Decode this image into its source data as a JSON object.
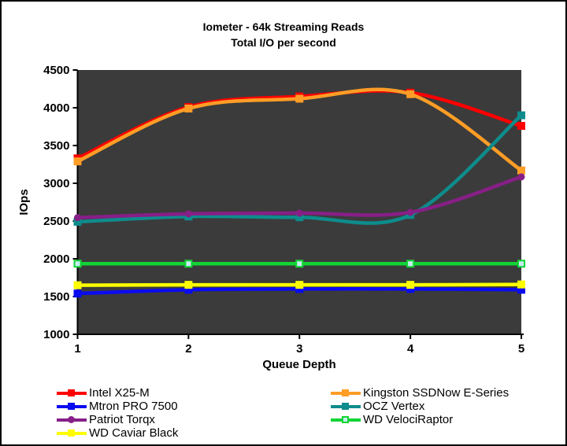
{
  "frame": {
    "background": "#FFFFFF",
    "border_color": "#000000"
  },
  "chart_data": {
    "type": "line",
    "title": "Iometer - 64k Streaming Reads",
    "subtitle": "Total I/O per second",
    "xlabel": "Queue Depth",
    "ylabel": "IOps",
    "x": [
      1,
      2,
      3,
      4,
      5
    ],
    "xticks": [
      "1",
      "2",
      "3",
      "4",
      "5"
    ],
    "yticks": [
      "4500",
      "4000",
      "3500",
      "3000",
      "2500",
      "2000",
      "1500",
      "1000"
    ],
    "ylim": [
      1000,
      4500
    ],
    "ytick_step": 500,
    "grid": false,
    "plot_bg": "#3B3B3B",
    "axis_color": "#000000",
    "smoothed_lines": true,
    "legend_position": "bottom-two-columns",
    "series": [
      {
        "name": "Intel X25-M",
        "color": "#FE0000",
        "marker": "square",
        "values": [
          3330,
          4010,
          4150,
          4200,
          3760
        ]
      },
      {
        "name": "Kingston SSDNow E-Series",
        "color": "#FF9D26",
        "marker": "square",
        "values": [
          3290,
          3990,
          4120,
          4180,
          3170
        ]
      },
      {
        "name": "Mtron PRO 7500",
        "color": "#0B0BF0",
        "marker": "square",
        "values": [
          1540,
          1590,
          1600,
          1600,
          1590
        ]
      },
      {
        "name": "OCZ Vertex",
        "color": "#0E8C8C",
        "marker": "square",
        "values": [
          2490,
          2560,
          2550,
          2580,
          3900
        ]
      },
      {
        "name": "Patriot Torqx",
        "color": "#871F87",
        "marker": "circle",
        "values": [
          2545,
          2595,
          2605,
          2615,
          3085
        ]
      },
      {
        "name": "WD VelociRaptor",
        "color": "#12D435",
        "marker": "square",
        "marker_fill": "#C7ECF2",
        "values": [
          1935,
          1935,
          1935,
          1935,
          1935
        ]
      },
      {
        "name": "WD Caviar Black",
        "color": "#FDFD00",
        "marker": "square",
        "values": [
          1650,
          1655,
          1655,
          1655,
          1660
        ]
      }
    ],
    "legend_columns": [
      [
        0,
        2,
        4,
        6
      ],
      [
        1,
        3,
        5
      ]
    ]
  }
}
